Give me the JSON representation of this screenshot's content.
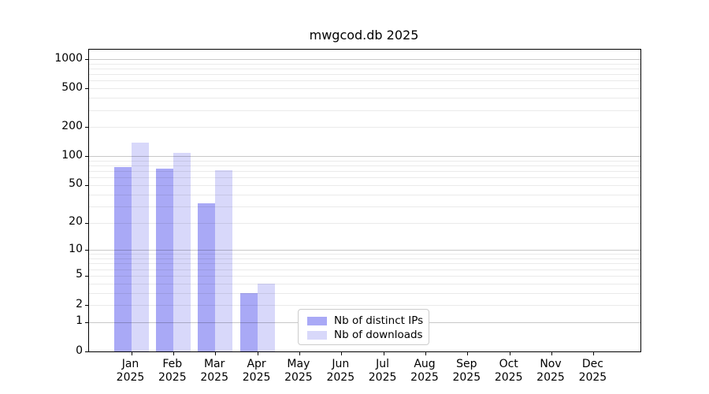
{
  "chart_data": {
    "type": "bar",
    "title": "mwgcod.db 2025",
    "categories": [
      "Jan",
      "Feb",
      "Mar",
      "Apr",
      "May",
      "Jun",
      "Jul",
      "Aug",
      "Sep",
      "Oct",
      "Nov",
      "Dec"
    ],
    "x_year_label": "2025",
    "series": [
      {
        "name": "Nb of distinct IPs",
        "color": "#a9a9f6",
        "values": [
          77,
          74,
          32,
          3,
          0,
          0,
          0,
          0,
          0,
          0,
          0,
          0
        ]
      },
      {
        "name": "Nb of downloads",
        "color": "#d8d8fa",
        "values": [
          138,
          109,
          72,
          4,
          0,
          0,
          0,
          0,
          0,
          0,
          0,
          0
        ]
      }
    ],
    "y_scale": "log1p",
    "y_ticks": [
      0,
      1,
      2,
      5,
      10,
      20,
      50,
      100,
      200,
      500,
      1000
    ],
    "ylim": [
      0,
      1250
    ],
    "grid": "both",
    "legend_position": "inside-bottom-center",
    "colors": {
      "major_grid": "#c8c8c8",
      "minor_grid": "#ebebeb",
      "spine": "#000000",
      "background": "#ffffff"
    }
  }
}
